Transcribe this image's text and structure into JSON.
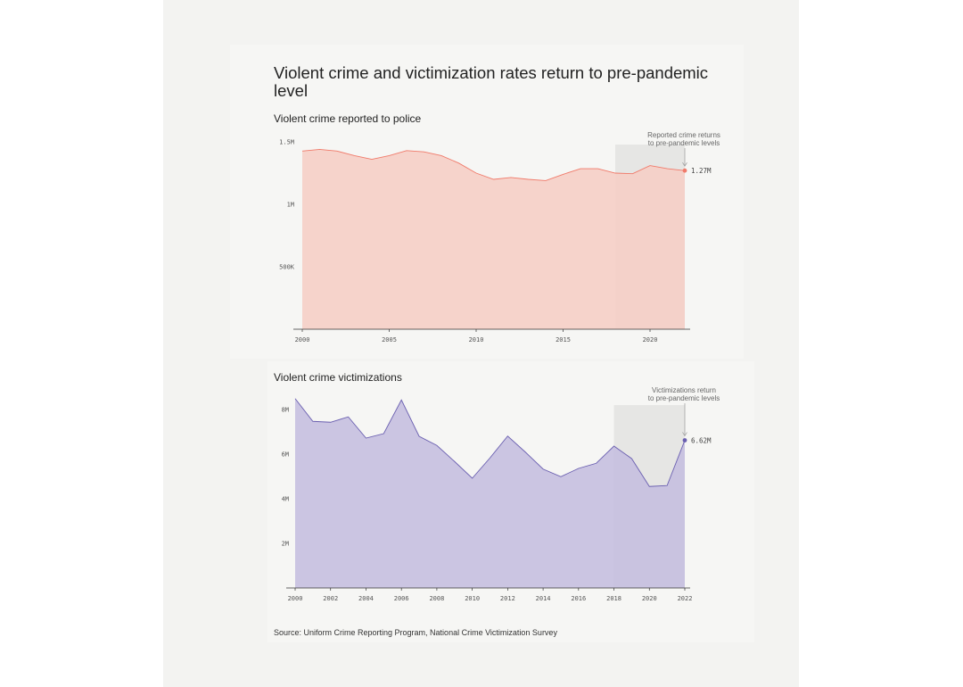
{
  "title": "Violent crime and victimization rates return to pre-pandemic level",
  "source": "Source: Uniform Crime Reporting Program, National Crime Victimization Survey",
  "colors": {
    "background": "#f3f3f1",
    "reported_fill": "#f5cfc7",
    "reported_line": "#f07a6a",
    "victim_fill": "#c7c0e0",
    "victim_line": "#6a5fb0",
    "highlight": "#e6e6e4"
  },
  "chart_data": [
    {
      "type": "area",
      "title": "Violent crime reported to police",
      "x": [
        2000,
        2001,
        2002,
        2003,
        2004,
        2005,
        2006,
        2007,
        2008,
        2009,
        2010,
        2011,
        2012,
        2013,
        2014,
        2015,
        2016,
        2017,
        2018,
        2019,
        2020,
        2021,
        2022
      ],
      "values": [
        1.426,
        1.44,
        1.426,
        1.39,
        1.36,
        1.39,
        1.43,
        1.42,
        1.39,
        1.33,
        1.25,
        1.2,
        1.215,
        1.2,
        1.19,
        1.24,
        1.285,
        1.285,
        1.25,
        1.245,
        1.31,
        1.285,
        1.27
      ],
      "unit": "millions",
      "ylim": [
        0,
        1.5
      ],
      "yticks": [
        {
          "v": 1.5,
          "label": "1.5M"
        },
        {
          "v": 1,
          "label": "1M"
        },
        {
          "v": 0.5,
          "label": "500K"
        }
      ],
      "xticks": [
        2000,
        2005,
        2010,
        2015,
        2020
      ],
      "xlim": [
        2000,
        2022
      ],
      "highlight_range": [
        2018,
        2022
      ],
      "annotation": [
        "Reported crime returns",
        "to pre-pandemic levels"
      ],
      "end_label": "1.27M"
    },
    {
      "type": "area",
      "title": "Violent crime victimizations",
      "x": [
        2000,
        2001,
        2002,
        2003,
        2004,
        2005,
        2006,
        2007,
        2008,
        2009,
        2010,
        2011,
        2012,
        2013,
        2014,
        2015,
        2016,
        2017,
        2018,
        2019,
        2020,
        2021,
        2022
      ],
      "values": [
        8.49,
        7.47,
        7.43,
        7.67,
        6.72,
        6.92,
        8.43,
        6.8,
        6.39,
        5.67,
        4.92,
        5.83,
        6.81,
        6.09,
        5.33,
        4.99,
        5.36,
        5.59,
        6.36,
        5.8,
        4.55,
        4.59,
        6.62
      ],
      "unit": "millions",
      "ylim": [
        0,
        8
      ],
      "yticks": [
        {
          "v": 8,
          "label": "8M"
        },
        {
          "v": 6,
          "label": "6M"
        },
        {
          "v": 4,
          "label": "4M"
        },
        {
          "v": 2,
          "label": "2M"
        }
      ],
      "xticks": [
        2000,
        2002,
        2004,
        2006,
        2008,
        2010,
        2012,
        2014,
        2016,
        2018,
        2020,
        2022
      ],
      "xlim": [
        2000,
        2022
      ],
      "highlight_range": [
        2018,
        2022
      ],
      "annotation": [
        "Victimizations return",
        "to pre-pandemic levels"
      ],
      "end_label": "6.62M"
    }
  ]
}
